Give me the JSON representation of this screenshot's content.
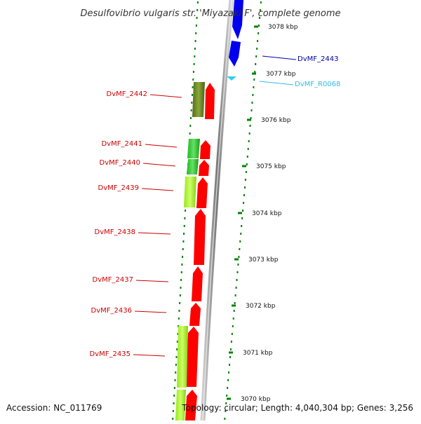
{
  "title": "Desulfovibrio vulgaris str. 'Miyazaki F', complete genome",
  "accession": "Accession: NC_011769",
  "topology": "Topology: circular; Length: 4,040,304 bp; Genes: 3,256",
  "colors": {
    "forward_cds": "#ff0000",
    "tick_mark": "#008000",
    "label_red": "#cc0000",
    "label_blue": "#0000aa",
    "label_cyan": "#33bbdd",
    "arrow_blue": "#0000ee",
    "backbone": "#8a8a8a"
  },
  "ticks": [
    {
      "label": "3078 kbp"
    },
    {
      "label": "3077 kbp"
    },
    {
      "label": "3076 kbp"
    },
    {
      "label": "3075 kbp"
    },
    {
      "label": "3074 kbp"
    },
    {
      "label": "3073 kbp"
    },
    {
      "label": "3072 kbp"
    },
    {
      "label": "3071 kbp"
    },
    {
      "label": "3070 kbp"
    }
  ],
  "genes": [
    {
      "label": "DvMF_2443",
      "color": "blue"
    },
    {
      "label": "DvMF_R0068",
      "color": "cyan"
    },
    {
      "label": "DvMF_2442",
      "color": "red"
    },
    {
      "label": "DvMF_2441",
      "color": "red"
    },
    {
      "label": "DvMF_2440",
      "color": "red"
    },
    {
      "label": "DvMF_2439",
      "color": "red"
    },
    {
      "label": "DvMF_2438",
      "color": "red"
    },
    {
      "label": "DvMF_2437",
      "color": "red"
    },
    {
      "label": "DvMF_2436",
      "color": "red"
    },
    {
      "label": "DvMF_2435",
      "color": "red"
    }
  ]
}
